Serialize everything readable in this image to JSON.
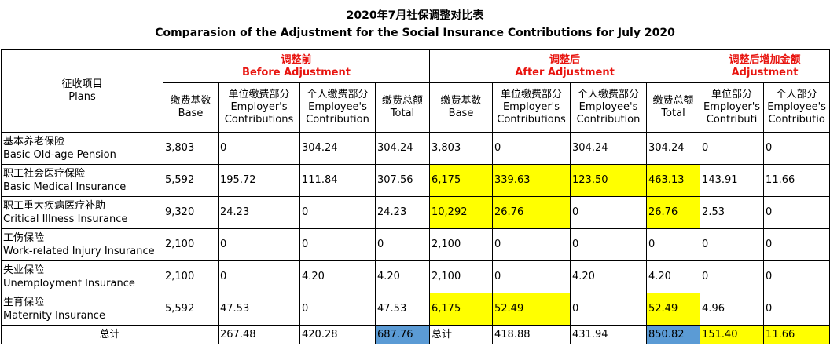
{
  "title_cn": "2020年7月社保调整对比表",
  "title_en": "Comparasion of the Adjustment for the Social Insurance Contributions for July 2020",
  "plan_header": {
    "cn": "征收项目",
    "en": "Plans"
  },
  "groups": [
    {
      "cn": "调整前",
      "en": "Before Adjustment"
    },
    {
      "cn": "调整后",
      "en": "After Adjustment"
    },
    {
      "cn": "调整后增加金额",
      "en": "Adjustment"
    }
  ],
  "sub_headers": {
    "base": {
      "cn": "缴费基数",
      "en": "Base"
    },
    "employer": {
      "cn": "单位缴费部分",
      "en": "Employer's",
      "en2": "Contributions"
    },
    "employee": {
      "cn": "个人缴费部分",
      "en": "Employee's",
      "en2": "Contribution"
    },
    "total": {
      "cn": "缴费总额",
      "en": "Total"
    },
    "adj_employer": {
      "cn": "单位部分",
      "en": "Employer's",
      "en2": "Contributi"
    },
    "adj_employee": {
      "cn": "个人部分",
      "en": "Employee's",
      "en2": "Contributio"
    }
  },
  "rows": [
    {
      "cn": "基本养老保险",
      "en": "Basic Old-age Pension",
      "v": [
        "3,803",
        "0",
        "304.24",
        "304.24",
        "3,803",
        "0",
        "304.24",
        "304.24",
        "0",
        "0"
      ]
    },
    {
      "cn": "职工社会医疗保险",
      "en": "Basic Medical Insurance",
      "v": [
        "5,592",
        "195.72",
        "111.84",
        "307.56",
        "6,175",
        "339.63",
        "123.50",
        "463.13",
        "143.91",
        "11.66"
      ]
    },
    {
      "cn": "职工重大疾病医疗补助",
      "en": "Critical Illness Insurance",
      "v": [
        "9,320",
        "24.23",
        "0",
        "24.23",
        "10,292",
        "26.76",
        "0",
        "26.76",
        "2.53",
        "0"
      ]
    },
    {
      "cn": "工伤保险",
      "en": "Work-related Injury Insurance",
      "v": [
        "2,100",
        "0",
        "0",
        "0",
        "2,100",
        "0",
        "0",
        "0",
        "0",
        "0"
      ]
    },
    {
      "cn": "失业保险",
      "en": "Unemployment Insurance",
      "v": [
        "2,100",
        "0",
        "4.20",
        "4.20",
        "2,100",
        "0",
        "4.20",
        "4.20",
        "0",
        "0"
      ]
    },
    {
      "cn": "生育保险",
      "en": "Maternity Insurance",
      "v": [
        "5,592",
        "47.53",
        "0",
        "47.53",
        "6,175",
        "52.49",
        "0",
        "52.49",
        "4.96",
        "0"
      ]
    }
  ],
  "total_row": {
    "label": "总计",
    "label2": "总计",
    "v": [
      "267.48",
      "420.28",
      "687.76",
      "418.88",
      "431.94",
      "850.82",
      "151.40",
      "11.66"
    ]
  },
  "colors": {
    "highlight_yellow": "#ffff00",
    "highlight_blue": "#5b9bd5",
    "header_red": "#e8140f"
  }
}
